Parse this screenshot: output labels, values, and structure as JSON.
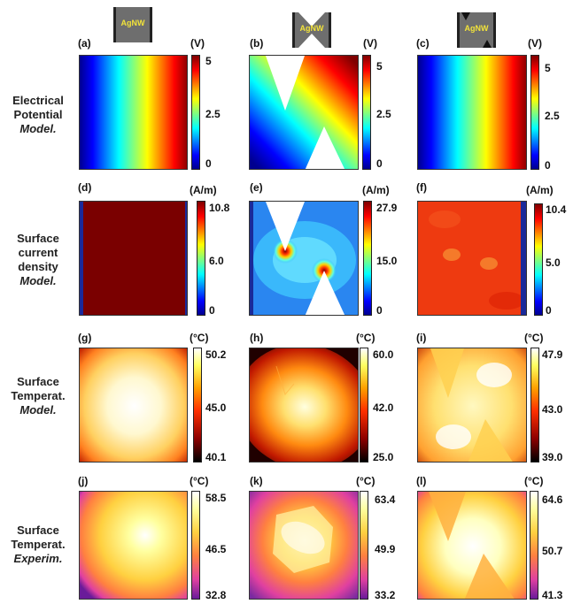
{
  "rows": [
    {
      "line1": "Electrical",
      "line2": "Potential",
      "line3": "Model."
    },
    {
      "line1": "Surface",
      "line2": "current",
      "line3": "density",
      "line4": "Model."
    },
    {
      "line1": "Surface",
      "line2": "Temperat.",
      "line3": "Model."
    },
    {
      "line1": "Surface",
      "line2": "Temperat.",
      "line3": "Experim."
    }
  ],
  "samples": [
    {
      "label": "AgNW",
      "shape": "plain"
    },
    {
      "label": "AgNW",
      "shape": "triangles"
    },
    {
      "label": "AgNW",
      "shape": "small-triangles"
    }
  ],
  "panels": [
    {
      "id": "(a)",
      "unit": "(V)",
      "ticks": [
        "5",
        "2.5",
        "0"
      ]
    },
    {
      "id": "(b)",
      "unit": "(V)",
      "ticks": [
        "5",
        "2.5",
        "0"
      ]
    },
    {
      "id": "(c)",
      "unit": "(V)",
      "ticks": [
        "5",
        "2.5",
        "0"
      ]
    },
    {
      "id": "(d)",
      "unit": "(A/m)",
      "ticks": [
        "10.8",
        "6.0",
        "0"
      ]
    },
    {
      "id": "(e)",
      "unit": "(A/m)",
      "ticks": [
        "27.9",
        "15.0",
        "0"
      ]
    },
    {
      "id": "(f)",
      "unit": "(A/m)",
      "ticks": [
        "10.4",
        "5.0",
        "0"
      ]
    },
    {
      "id": "(g)",
      "unit": "(°C)",
      "ticks": [
        "50.2",
        "45.0",
        "40.1"
      ]
    },
    {
      "id": "(h)",
      "unit": "(°C)",
      "ticks": [
        "60.0",
        "42.0",
        "25.0"
      ]
    },
    {
      "id": "(i)",
      "unit": "(°C)",
      "ticks": [
        "47.9",
        "43.0",
        "39.0"
      ]
    },
    {
      "id": "(j)",
      "unit": "(°C)",
      "ticks": [
        "58.5",
        "46.5",
        "32.8"
      ]
    },
    {
      "id": "(k)",
      "unit": "(°C)",
      "ticks": [
        "63.4",
        "49.9",
        "33.2"
      ]
    },
    {
      "id": "(l)",
      "unit": "(°C)",
      "ticks": [
        "64.6",
        "50.7",
        "41.3"
      ]
    }
  ],
  "colormaps": {
    "jet": [
      "#00008f",
      "#0000ff",
      "#00ffff",
      "#ffff00",
      "#ff0000",
      "#800000"
    ],
    "hot": [
      "#000000",
      "#8b0000",
      "#ff3000",
      "#ffa000",
      "#ffff60",
      "#ffffff"
    ],
    "ir": [
      "#6a1b9a",
      "#e040a0",
      "#ff8040",
      "#ffd040",
      "#ffffa0",
      "#ffffff"
    ]
  }
}
